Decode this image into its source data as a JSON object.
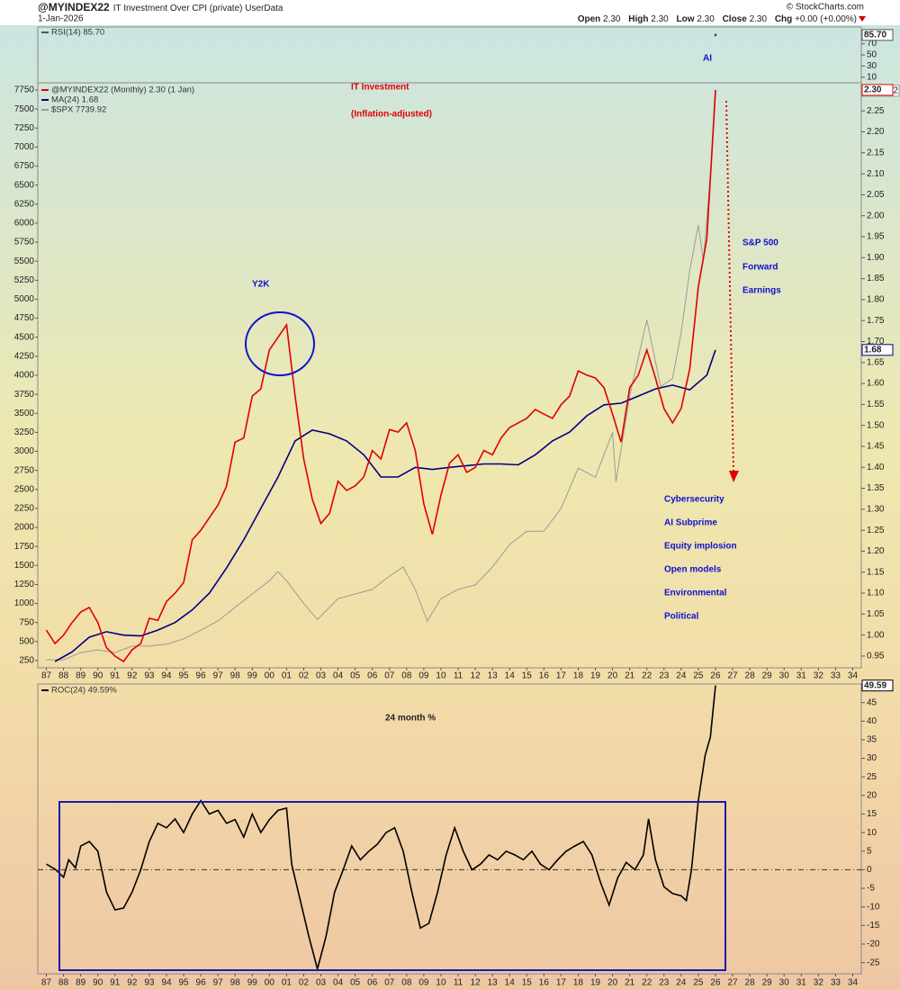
{
  "header": {
    "symbol": "@MYINDEX22",
    "description": "IT Investment Over CPI (private) UserData",
    "date": "1-Jan-2026",
    "copyright": "© StockCharts.com",
    "quote": [
      {
        "label": "Open",
        "value": "2.30"
      },
      {
        "label": "High",
        "value": "2.30"
      },
      {
        "label": "Low",
        "value": "2.30"
      },
      {
        "label": "Close",
        "value": "2.30"
      },
      {
        "label": "Chg",
        "value": "+0.00 (+0.00%)"
      }
    ]
  },
  "chart_data": [
    {
      "type": "line",
      "xlim": [
        1986.5,
        2034.5
      ],
      "ylim": [
        0,
        100
      ],
      "yticks": [
        10,
        30,
        50,
        70
      ],
      "series": [
        {
          "name": "RSI(14) 85.70",
          "color": "#555555",
          "x": [
            2026.0
          ],
          "values": [
            85.7
          ],
          "end_label": "85.70"
        }
      ]
    },
    {
      "type": "line",
      "xlim": [
        1986.5,
        2034.5
      ],
      "ylim": [
        0.922,
        2.317
      ],
      "y2lim": [
        155,
        7845
      ],
      "annotations": [
        "IT Investment",
        "(Inflation-adjusted)",
        "Y2K",
        "AI",
        "S&P 500",
        "Forward",
        "Earnings",
        "Cybersecurity",
        "AI Subprime",
        "Equity implosion",
        "Open models",
        "Environmental",
        "Political"
      ],
      "xticks": [
        {
          "value": 1987,
          "label": "87"
        },
        {
          "value": 1988,
          "label": "88"
        },
        {
          "value": 1989,
          "label": "89"
        },
        {
          "value": 1990,
          "label": "90"
        },
        {
          "value": 1991,
          "label": "91"
        },
        {
          "value": 1992,
          "label": "92"
        },
        {
          "value": 1993,
          "label": "93"
        },
        {
          "value": 1994,
          "label": "94"
        },
        {
          "value": 1995,
          "label": "95"
        },
        {
          "value": 1996,
          "label": "96"
        },
        {
          "value": 1997,
          "label": "97"
        },
        {
          "value": 1998,
          "label": "98"
        },
        {
          "value": 1999,
          "label": "99"
        },
        {
          "value": 2000,
          "label": "00"
        },
        {
          "value": 2001,
          "label": "01"
        },
        {
          "value": 2002,
          "label": "02"
        },
        {
          "value": 2003,
          "label": "03"
        },
        {
          "value": 2004,
          "label": "04"
        },
        {
          "value": 2005,
          "label": "05"
        },
        {
          "value": 2006,
          "label": "06"
        },
        {
          "value": 2007,
          "label": "07"
        },
        {
          "value": 2008,
          "label": "08"
        },
        {
          "value": 2009,
          "label": "09"
        },
        {
          "value": 2010,
          "label": "10"
        },
        {
          "value": 2011,
          "label": "11"
        },
        {
          "value": 2012,
          "label": "12"
        },
        {
          "value": 2013,
          "label": "13"
        },
        {
          "value": 2014,
          "label": "14"
        },
        {
          "value": 2015,
          "label": "15"
        },
        {
          "value": 2016,
          "label": "16"
        },
        {
          "value": 2017,
          "label": "17"
        },
        {
          "value": 2018,
          "label": "18"
        },
        {
          "value": 2019,
          "label": "19"
        },
        {
          "value": 2020,
          "label": "20"
        },
        {
          "value": 2021,
          "label": "21"
        },
        {
          "value": 2022,
          "label": "22"
        },
        {
          "value": 2023,
          "label": "23"
        },
        {
          "value": 2024,
          "label": "24"
        },
        {
          "value": 2025,
          "label": "25"
        },
        {
          "value": 2026,
          "label": "26"
        },
        {
          "value": 2027,
          "label": "27"
        },
        {
          "value": 2028,
          "label": "28"
        },
        {
          "value": 2029,
          "label": "29"
        },
        {
          "value": 2030,
          "label": "30"
        },
        {
          "value": 2031,
          "label": "31"
        },
        {
          "value": 2032,
          "label": "32"
        },
        {
          "value": 2033,
          "label": "33"
        },
        {
          "value": 2034,
          "label": "34"
        }
      ],
      "yticks": [
        0.95,
        {
          "value": 1,
          "label": "1.00"
        },
        1.05,
        {
          "value": 1.1,
          "label": "1.10"
        },
        1.15,
        {
          "value": 1.2,
          "label": "1.20"
        },
        1.25,
        {
          "value": 1.3,
          "label": "1.30"
        },
        1.35,
        {
          "value": 1.4,
          "label": "1.40"
        },
        1.45,
        {
          "value": 1.5,
          "label": "1.50"
        },
        1.55,
        {
          "value": 1.6,
          "label": "1.60"
        },
        1.65,
        {
          "value": 1.7,
          "label": "1.70"
        },
        1.75,
        {
          "value": 1.8,
          "label": "1.80"
        },
        1.85,
        {
          "value": 1.9,
          "label": "1.90"
        },
        1.95,
        {
          "value": 2,
          "label": "2.00"
        },
        2.05,
        {
          "value": 2.1,
          "label": "2.10"
        },
        2.15,
        {
          "value": 2.2,
          "label": "2.20"
        },
        2.25
      ],
      "y2ticks": [
        250,
        500,
        750,
        1000,
        1250,
        1500,
        1750,
        2000,
        2250,
        2500,
        2750,
        3000,
        3250,
        3500,
        3750,
        4000,
        4250,
        4500,
        4750,
        5000,
        5250,
        5500,
        5750,
        6000,
        6250,
        6500,
        6750,
        7000,
        7250,
        7500,
        7750
      ],
      "series": [
        {
          "name": "$SPX 7739.92",
          "color": "#9a9a9a",
          "axis": "y2",
          "end_label": "7739.92",
          "x": [
            1987,
            1988,
            1989,
            1990,
            1991,
            1992,
            1993,
            1994,
            1995,
            1996,
            1997,
            1998,
            1999,
            2000,
            2000.5,
            2001,
            2002,
            2002.8,
            2003.5,
            2004,
            2005,
            2006,
            2007,
            2007.8,
            2008.5,
            2009.2,
            2010,
            2011,
            2012,
            2013,
            2014,
            2015,
            2016,
            2017,
            2018,
            2019,
            2020,
            2020.2,
            2021,
            2022,
            2022.8,
            2023.5,
            2024,
            2024.5,
            2025,
            2025.3,
            2025.8,
            2026
          ],
          "values": [
            260,
            260,
            355,
            390,
            355,
            440,
            440,
            465,
            535,
            650,
            770,
            950,
            1125,
            1300,
            1420,
            1300,
            1000,
            790,
            950,
            1065,
            1125,
            1185,
            1360,
            1480,
            1185,
            770,
            1065,
            1185,
            1245,
            1480,
            1775,
            1950,
            1950,
            2250,
            2780,
            2660,
            3250,
            2600,
            3730,
            4730,
            3850,
            3960,
            4560,
            5380,
            5975,
            5500,
            6920,
            7739.92
          ]
        },
        {
          "name": "MA(24) 1.68",
          "color": "#00007f",
          "end_label": "1.68",
          "x": [
            1987.5,
            1988.5,
            1989.5,
            1990.5,
            1991.5,
            1992.5,
            1993.5,
            1994.5,
            1995.5,
            1996.5,
            1997.5,
            1998.5,
            1999.5,
            2000.5,
            2001.5,
            2002.5,
            2003.5,
            2004.5,
            2005.5,
            2006.5,
            2007.5,
            2008.5,
            2009.5,
            2010.5,
            2011.5,
            2012.5,
            2013.5,
            2014.5,
            2015.5,
            2016.5,
            2017.5,
            2018.5,
            2019.5,
            2020.5,
            2021.5,
            2022.5,
            2023.5,
            2024.5,
            2025.5,
            2026
          ],
          "values": [
            0.937,
            0.96,
            0.995,
            1.008,
            1.0,
            0.998,
            1.012,
            1.03,
            1.06,
            1.1,
            1.16,
            1.227,
            1.302,
            1.377,
            1.463,
            1.489,
            1.48,
            1.463,
            1.43,
            1.377,
            1.377,
            1.4,
            1.395,
            1.4,
            1.404,
            1.408,
            1.408,
            1.406,
            1.43,
            1.463,
            1.484,
            1.523,
            1.549,
            1.553,
            1.57,
            1.587,
            1.596,
            1.585,
            1.62,
            1.68
          ]
        },
        {
          "name": "@MYINDEX22 (Monthly) 2.30 (1 Jan)",
          "color": "#e00000",
          "end_label": "2.30",
          "x": [
            1987,
            1987.5,
            1988,
            1988.5,
            1989,
            1989.5,
            1990,
            1990.5,
            1991,
            1991.5,
            1992,
            1992.5,
            1993,
            1993.5,
            1994,
            1994.5,
            1995,
            1995.5,
            1996,
            1996.5,
            1997,
            1997.5,
            1998,
            1998.5,
            1999,
            1999.5,
            2000,
            2000.5,
            2001,
            2001.5,
            2002,
            2002.5,
            2003,
            2003.5,
            2004,
            2004.5,
            2005,
            2005.5,
            2006,
            2006.5,
            2007,
            2007.5,
            2008,
            2008.5,
            2009,
            2009.5,
            2010,
            2010.5,
            2011,
            2011.5,
            2012,
            2012.5,
            2013,
            2013.5,
            2014,
            2014.5,
            2015,
            2015.5,
            2016,
            2016.5,
            2017,
            2017.5,
            2018,
            2018.5,
            2019,
            2019.5,
            2020,
            2020.5,
            2021,
            2021.5,
            2022,
            2022.5,
            2023,
            2023.5,
            2024,
            2024.5,
            2025,
            2025.5,
            2026
          ],
          "values": [
            1.012,
            0.98,
            1.0,
            1.03,
            1.055,
            1.066,
            1.03,
            0.97,
            0.95,
            0.937,
            0.965,
            0.98,
            1.04,
            1.035,
            1.08,
            1.1,
            1.125,
            1.227,
            1.25,
            1.28,
            1.31,
            1.355,
            1.46,
            1.47,
            1.57,
            1.587,
            1.68,
            1.71,
            1.74,
            1.57,
            1.42,
            1.324,
            1.266,
            1.29,
            1.367,
            1.345,
            1.356,
            1.377,
            1.44,
            1.42,
            1.49,
            1.484,
            1.506,
            1.44,
            1.313,
            1.24,
            1.334,
            1.41,
            1.43,
            1.388,
            1.4,
            1.44,
            1.43,
            1.47,
            1.495,
            1.506,
            1.517,
            1.538,
            1.527,
            1.517,
            1.549,
            1.57,
            1.63,
            1.62,
            1.613,
            1.59,
            1.527,
            1.46,
            1.59,
            1.62,
            1.68,
            1.613,
            1.54,
            1.506,
            1.54,
            1.635,
            1.83,
            1.946,
            2.3
          ]
        }
      ]
    },
    {
      "type": "line",
      "xlim": [
        1986.5,
        2034.5
      ],
      "ylim": [
        -28,
        50
      ],
      "zero_line": true,
      "annotations": [
        "24 month %"
      ],
      "yticks": [
        -25,
        -20,
        -15,
        -10,
        -5,
        0,
        5,
        10,
        15,
        20,
        25,
        30,
        35,
        40,
        45
      ],
      "series": [
        {
          "name": "ROC(24) 49.59%",
          "color": "#000000",
          "end_label": "49.59",
          "x": [
            1987.0,
            1987.5,
            1988.0,
            1988.3,
            1988.7,
            1989.0,
            1989.5,
            1990.0,
            1990.5,
            1991.0,
            1991.5,
            1992.0,
            1992.5,
            1993.0,
            1993.5,
            1994.0,
            1994.5,
            1995.0,
            1995.5,
            1996.0,
            1996.5,
            1997.0,
            1997.5,
            1998.0,
            1998.5,
            1999.0,
            1999.5,
            2000.0,
            2000.5,
            2001.0,
            2001.3,
            2001.8,
            2002.3,
            2002.8,
            2003.3,
            2003.8,
            2004.3,
            2004.8,
            2005.3,
            2005.8,
            2006.3,
            2006.8,
            2007.3,
            2007.8,
            2008.3,
            2008.8,
            2009.3,
            2009.8,
            2010.3,
            2010.8,
            2011.3,
            2011.8,
            2012.3,
            2012.8,
            2013.3,
            2013.8,
            2014.3,
            2014.8,
            2015.3,
            2015.8,
            2016.3,
            2016.8,
            2017.3,
            2017.8,
            2018.3,
            2018.8,
            2019.3,
            2019.8,
            2020.3,
            2020.8,
            2021.3,
            2021.8,
            2022.1,
            2022.5,
            2023.0,
            2023.5,
            2024.0,
            2024.3,
            2024.6,
            2025.0,
            2025.4,
            2025.7,
            2026.0
          ],
          "values": [
            1.5,
            0.2,
            -2,
            2.7,
            0.5,
            6.4,
            7.6,
            5,
            -6,
            -10.8,
            -10.3,
            -6,
            0,
            7.6,
            12.5,
            11.3,
            13.7,
            10,
            15,
            18.6,
            15,
            16,
            12.5,
            13.5,
            8.8,
            15,
            10,
            13.5,
            16,
            16.6,
            1.5,
            -8.3,
            -18,
            -26.7,
            -18,
            -6,
            0,
            6.4,
            2.7,
            5,
            6.9,
            10,
            11.3,
            5,
            -6,
            -15.7,
            -14.4,
            -6,
            4,
            11.3,
            5,
            0,
            1.5,
            4,
            2.7,
            5,
            4,
            2.7,
            5,
            1.5,
            0,
            2.7,
            5,
            6.4,
            7.6,
            4,
            -3.4,
            -9.5,
            -2.2,
            2,
            0,
            4,
            13.7,
            2.7,
            -4.6,
            -6.4,
            -7,
            -8.3,
            0,
            18.6,
            30.8,
            35.7,
            49.59
          ]
        }
      ]
    }
  ]
}
